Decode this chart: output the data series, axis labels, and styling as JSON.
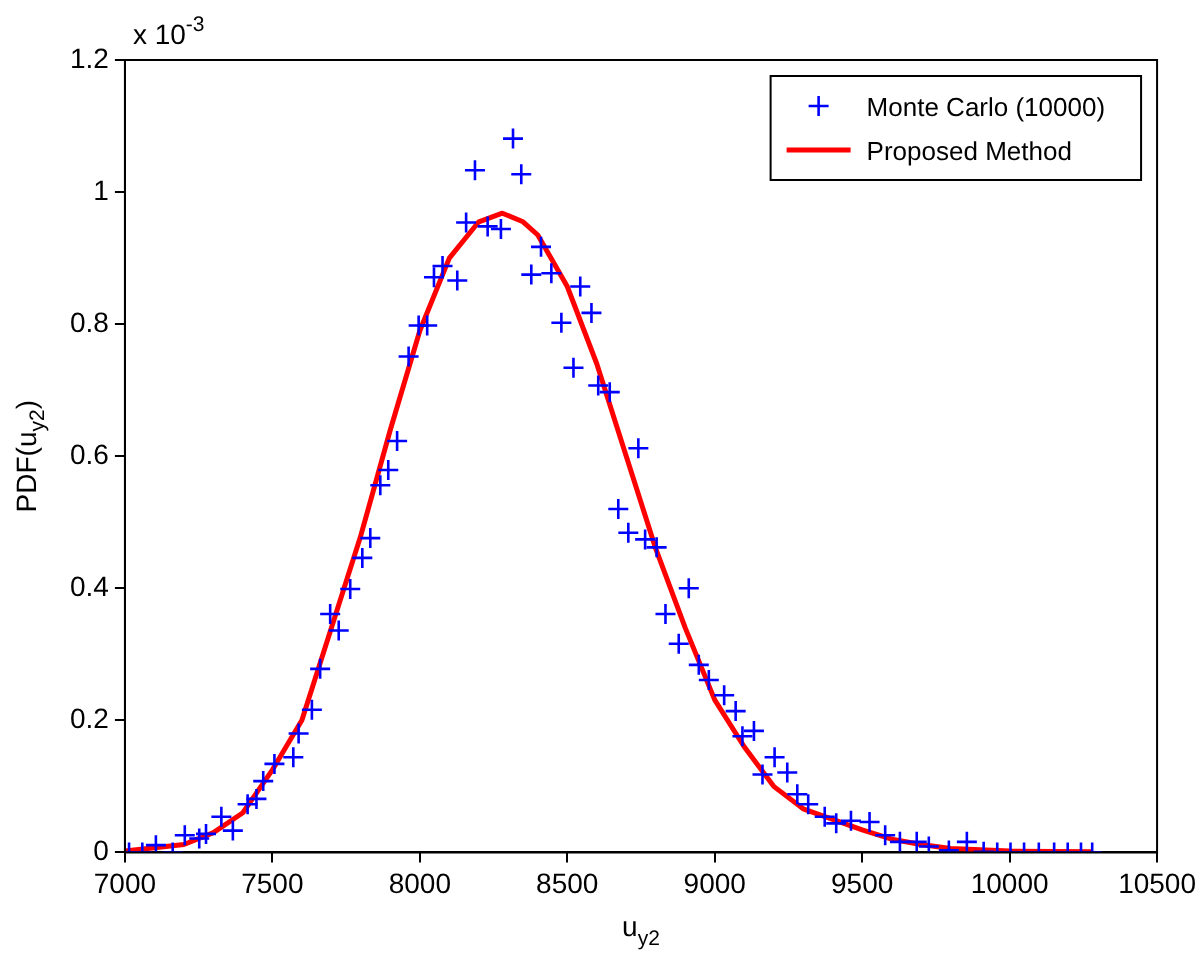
{
  "chart_data": {
    "type": "scatter",
    "xlabel": "u$_{y2}$",
    "ylabel": "PDF(u$_{y2}$)",
    "annotations": [
      "x 10$^{-3}$"
    ],
    "xlim": [
      7000,
      10500
    ],
    "xticks": [
      7000,
      7500,
      8000,
      8500,
      9000,
      9500,
      10000,
      10500
    ],
    "ylim": [
      0,
      1.2
    ],
    "yticks": [
      0,
      0.2,
      0.4,
      0.6,
      0.8,
      1,
      1.2
    ],
    "grid": false,
    "legend": "top right",
    "series": [
      {
        "name": "Monte Carlo (10000)",
        "marker": "cross",
        "color": "#0000ff",
        "x": [
          7014,
          7059,
          7105,
          7162,
          7203,
          7252,
          7275,
          7327,
          7366,
          7416,
          7446,
          7469,
          7507,
          7571,
          7589,
          7634,
          7662,
          7696,
          7725,
          7764,
          7805,
          7832,
          7866,
          7893,
          7923,
          7962,
          7996,
          8025,
          8048,
          8077,
          8127,
          8157,
          8187,
          8230,
          8275,
          8316,
          8344,
          8378,
          8411,
          8446,
          8480,
          8521,
          8544,
          8582,
          8605,
          8644,
          8673,
          8707,
          8741,
          8764,
          8803,
          8833,
          8878,
          8912,
          8946,
          8980,
          9032,
          9071,
          9094,
          9133,
          9162,
          9203,
          9246,
          9280,
          9317,
          9373,
          9412,
          9462,
          9525,
          9578,
          9628,
          9685,
          9726,
          9794,
          9855,
          9912,
          9958,
          10003,
          10049,
          10099,
          10151,
          10197,
          10242,
          10280
        ],
        "values": [
          0,
          0,
          0.011,
          0,
          0.026,
          0.021,
          0.028,
          0.054,
          0.033,
          0.073,
          0.081,
          0.108,
          0.134,
          0.144,
          0.18,
          0.216,
          0.278,
          0.361,
          0.336,
          0.399,
          0.446,
          0.476,
          0.556,
          0.579,
          0.623,
          0.751,
          0.798,
          0.798,
          0.871,
          0.888,
          0.866,
          0.954,
          1.033,
          0.948,
          0.944,
          1.081,
          1.027,
          0.875,
          0.917,
          0.877,
          0.802,
          0.734,
          0.857,
          0.817,
          0.707,
          0.697,
          0.52,
          0.484,
          0.612,
          0.474,
          0.462,
          0.361,
          0.316,
          0.4,
          0.284,
          0.261,
          0.238,
          0.214,
          0.176,
          0.184,
          0.118,
          0.144,
          0.121,
          0.088,
          0.073,
          0.054,
          0.044,
          0.048,
          0.046,
          0.026,
          0.016,
          0.016,
          0.009,
          0.003,
          0.016,
          0.001,
          0,
          0,
          0,
          0,
          0,
          0,
          0,
          0
        ]
      },
      {
        "name": "Proposed Method",
        "type": "line",
        "marker": "none",
        "color": "#ff0000",
        "x": [
          7000,
          7200,
          7300,
          7400,
          7500,
          7600,
          7700,
          7800,
          7900,
          8000,
          8100,
          8200,
          8280,
          8350,
          8400,
          8500,
          8600,
          8700,
          8800,
          8900,
          9000,
          9100,
          9200,
          9300,
          9400,
          9500,
          9600,
          9700,
          9800,
          9900,
          10000,
          10280
        ],
        "values": [
          0.002,
          0.012,
          0.03,
          0.06,
          0.125,
          0.2,
          0.34,
          0.48,
          0.64,
          0.79,
          0.9,
          0.955,
          0.968,
          0.955,
          0.935,
          0.857,
          0.74,
          0.6,
          0.46,
          0.34,
          0.231,
          0.16,
          0.1,
          0.066,
          0.05,
          0.034,
          0.02,
          0.012,
          0.006,
          0.004,
          0.002,
          0.001
        ]
      }
    ]
  }
}
